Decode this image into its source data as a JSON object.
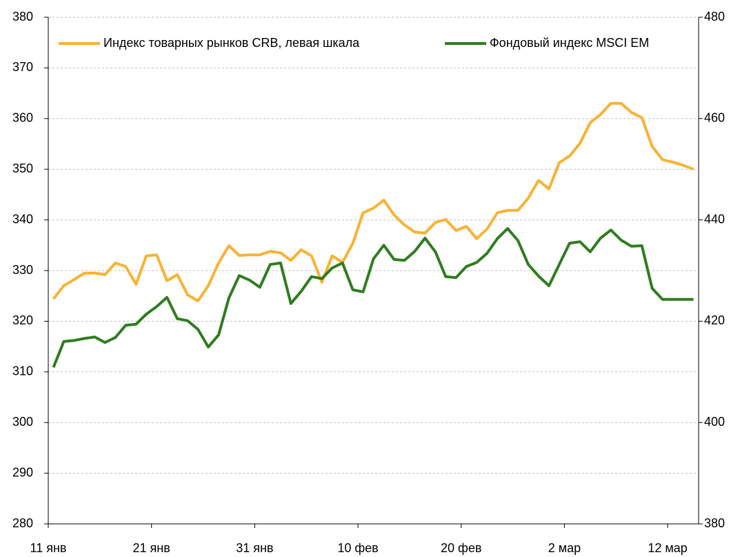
{
  "chart_data": {
    "type": "line",
    "categories": [
      "11 янв",
      null,
      null,
      null,
      null,
      null,
      null,
      null,
      null,
      null,
      "21 янв",
      null,
      null,
      null,
      null,
      null,
      null,
      null,
      null,
      null,
      "31 янв",
      null,
      null,
      null,
      null,
      null,
      null,
      null,
      null,
      null,
      "10 фев",
      null,
      null,
      null,
      null,
      null,
      null,
      null,
      null,
      null,
      "20 фев",
      null,
      null,
      null,
      null,
      null,
      null,
      null,
      null,
      null,
      "2 мар",
      null,
      null,
      null,
      null,
      null,
      null,
      null,
      null,
      null,
      "12 мар",
      null,
      null
    ],
    "series": [
      {
        "name": "Индекс товарных рынков CRB, левая шкала",
        "color": "#f9b233",
        "axis": "y",
        "values": [
          324.4,
          327.0,
          328.2,
          329.5,
          329.5,
          329.2,
          331.5,
          330.8,
          327.3,
          332.9,
          333.1,
          328.0,
          329.2,
          325.2,
          324.0,
          327.0,
          331.5,
          334.9,
          333.0,
          333.1,
          333.1,
          333.8,
          333.5,
          332.0,
          334.1,
          332.9,
          327.7,
          332.9,
          331.6,
          335.4,
          341.4,
          342.3,
          343.9,
          341.0,
          339.0,
          337.6,
          337.4,
          339.5,
          340.1,
          337.9,
          338.7,
          336.3,
          338.2,
          341.4,
          341.9,
          341.9,
          344.3,
          347.8,
          346.1,
          351.3,
          352.6,
          355.1,
          359.2,
          360.8,
          363.0,
          363.0,
          361.2,
          360.2,
          354.5,
          351.9,
          351.4,
          350.8,
          350.0
        ]
      },
      {
        "name": "Фондовый индекс MSCI EM",
        "color": "#2e7d1e",
        "axis": "y2",
        "values": [
          410.9,
          416.0,
          416.2,
          416.6,
          416.9,
          415.8,
          416.8,
          419.2,
          419.4,
          421.4,
          422.9,
          424.7,
          420.5,
          420.1,
          418.4,
          414.9,
          417.3,
          424.6,
          429.0,
          428.1,
          426.7,
          431.2,
          431.5,
          423.5,
          425.9,
          428.8,
          428.4,
          430.5,
          431.5,
          426.2,
          425.8,
          432.3,
          435.0,
          432.2,
          432.0,
          433.8,
          436.4,
          433.7,
          428.8,
          428.6,
          430.8,
          431.6,
          433.4,
          436.3,
          438.3,
          435.9,
          431.2,
          428.9,
          427.0,
          431.2,
          435.4,
          435.7,
          433.7,
          436.4,
          438.0,
          436.0,
          434.8,
          434.9,
          426.5,
          424.3,
          424.3,
          424.3,
          424.3
        ]
      }
    ],
    "ylim": [
      280,
      380
    ],
    "yticks": [
      280,
      290,
      300,
      310,
      320,
      330,
      340,
      350,
      360,
      370,
      380
    ],
    "y2lim": [
      380,
      480
    ],
    "y2ticks": [
      380,
      400,
      420,
      440,
      460,
      480
    ],
    "grid": true,
    "legend": "top"
  }
}
